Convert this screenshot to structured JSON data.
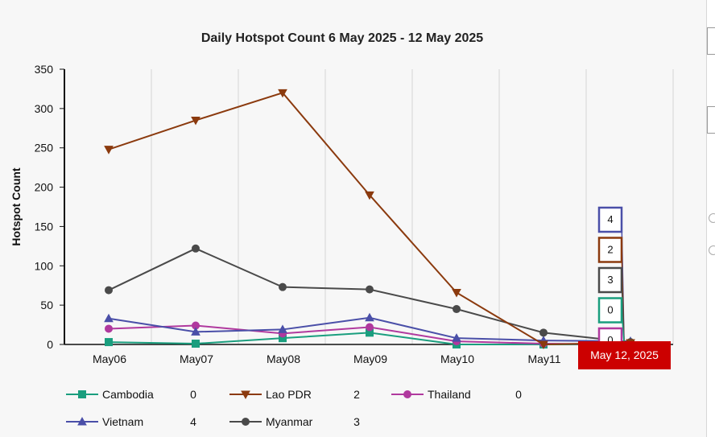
{
  "chart_data": {
    "type": "line",
    "title": "Daily Hotspot Count 6 May 2025 - 12 May 2025",
    "ylabel": "Hotspot Count",
    "xlabel": "",
    "ylim": [
      0,
      350
    ],
    "yticks": [
      0,
      50,
      100,
      150,
      200,
      250,
      300,
      350
    ],
    "categories": [
      "May06",
      "May07",
      "May08",
      "May09",
      "May10",
      "May11",
      "May12"
    ],
    "tooltip_date": "May 12, 2025",
    "grid": "vertical",
    "legend_position": "bottom",
    "series": [
      {
        "name": "Cambodia",
        "color": "#1a9e7e",
        "marker": "square",
        "values": [
          3,
          1,
          8,
          15,
          0,
          0,
          0
        ],
        "latest": "0"
      },
      {
        "name": "Lao PDR",
        "color": "#8b3a0e",
        "marker": "triangle-down",
        "values": [
          248,
          285,
          320,
          190,
          66,
          0,
          2
        ],
        "latest": "2"
      },
      {
        "name": "Thailand",
        "color": "#b0399e",
        "marker": "circle",
        "values": [
          20,
          24,
          14,
          22,
          4,
          1,
          0
        ],
        "latest": "0"
      },
      {
        "name": "Vietnam",
        "color": "#4a4fa8",
        "marker": "triangle-up",
        "values": [
          33,
          16,
          19,
          34,
          8,
          5,
          4
        ],
        "latest": "4"
      },
      {
        "name": "Myanmar",
        "color": "#4a4a4a",
        "marker": "circle",
        "values": [
          69,
          122,
          73,
          70,
          45,
          15,
          3
        ],
        "latest": "3"
      }
    ]
  }
}
